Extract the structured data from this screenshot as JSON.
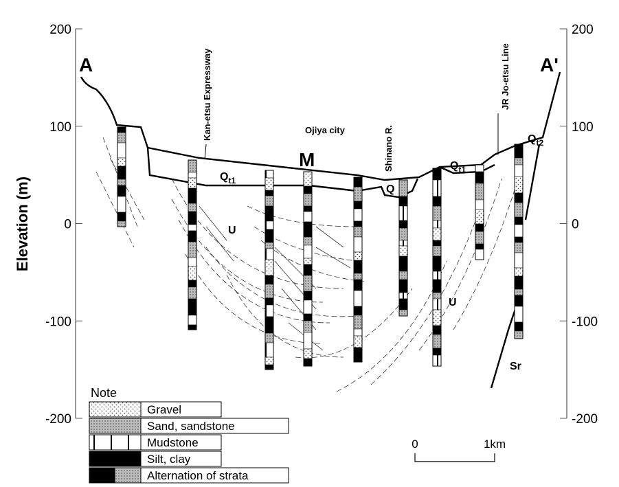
{
  "axis": {
    "label": "Elevation (m)",
    "ticks": [
      200,
      100,
      0,
      -100,
      -200
    ]
  },
  "section": {
    "start": "A",
    "end": "A'",
    "center": "M"
  },
  "landmarks": [
    "Kan-etsu Expressway",
    "Ojiya city",
    "Shinano R.",
    "JR Jo-etsu Line"
  ],
  "units": [
    {
      "symbol": "Q",
      "subscript": "t1"
    },
    {
      "symbol": "Q",
      "subscript": "t1"
    },
    {
      "symbol": "Q",
      "subscript": "t2"
    },
    {
      "symbol": "Q"
    },
    {
      "symbol": "U"
    },
    {
      "symbol": "U"
    },
    {
      "symbol": "Sr"
    }
  ],
  "scale": {
    "start": "0",
    "end": "1km"
  },
  "legend": {
    "title": "Note",
    "items": [
      "Gravel",
      "Sand, sandstone",
      "Mudstone",
      "Silt, clay",
      "Alternation of strata"
    ]
  }
}
